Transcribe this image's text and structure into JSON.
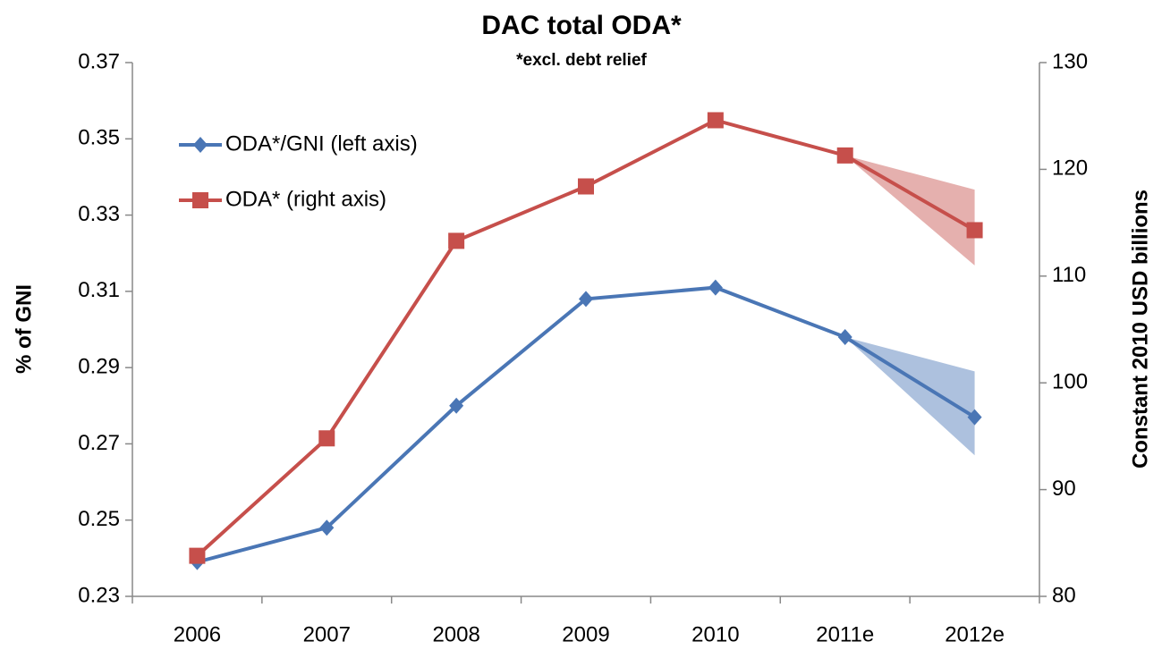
{
  "chart_data": {
    "type": "line",
    "title": "DAC total ODA*",
    "subtitle": "*excl. debt relief",
    "ylabel": "% of GNI",
    "y2label": "Constant 2010 USD billions",
    "categories": [
      "2006",
      "2007",
      "2008",
      "2009",
      "2010",
      "2011e",
      "2012e"
    ],
    "ylim": [
      0.23,
      0.37
    ],
    "yticks": [
      0.23,
      0.25,
      0.27,
      0.29,
      0.31,
      0.33,
      0.35,
      0.37
    ],
    "y2lim": [
      80,
      130
    ],
    "y2ticks": [
      80,
      90,
      100,
      110,
      120,
      130
    ],
    "legend": "upper left",
    "series": [
      {
        "name": "ODA*/GNI (left axis)",
        "color": "#4a76b5",
        "marker": "diamond",
        "values": [
          0.239,
          0.248,
          0.28,
          0.308,
          0.311,
          0.298,
          0.277
        ],
        "range_low": 0.267,
        "range_high": 0.289
      },
      {
        "name": "ODA* (right axis)",
        "color": "#c64f4b",
        "marker": "square",
        "axis": "y2",
        "values": [
          83.8,
          94.8,
          113.3,
          118.4,
          124.6,
          121.3,
          114.3
        ],
        "range_low": 111.0,
        "range_high": 118.1
      }
    ]
  }
}
